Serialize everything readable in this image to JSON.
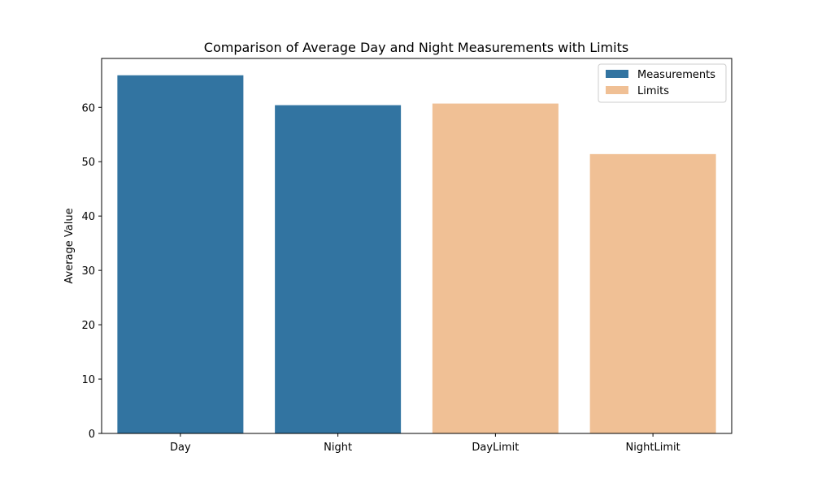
{
  "chart_data": {
    "type": "bar",
    "title": "Comparison of Average Day and Night Measurements with Limits",
    "xlabel": "",
    "ylabel": "Average Value",
    "ylim": [
      0,
      69
    ],
    "yticks": [
      0,
      10,
      20,
      30,
      40,
      50,
      60
    ],
    "categories": [
      "Day",
      "Night",
      "DayLimit",
      "NightLimit"
    ],
    "values": [
      65.9,
      60.4,
      60.7,
      51.4
    ],
    "bar_groups": [
      "Measurements",
      "Measurements",
      "Limits",
      "Limits"
    ],
    "legend": {
      "position": "top-right",
      "entries": [
        {
          "label": "Measurements",
          "color": "#3274a1"
        },
        {
          "label": "Limits",
          "color": "#f0c095"
        }
      ]
    },
    "grid": false
  }
}
